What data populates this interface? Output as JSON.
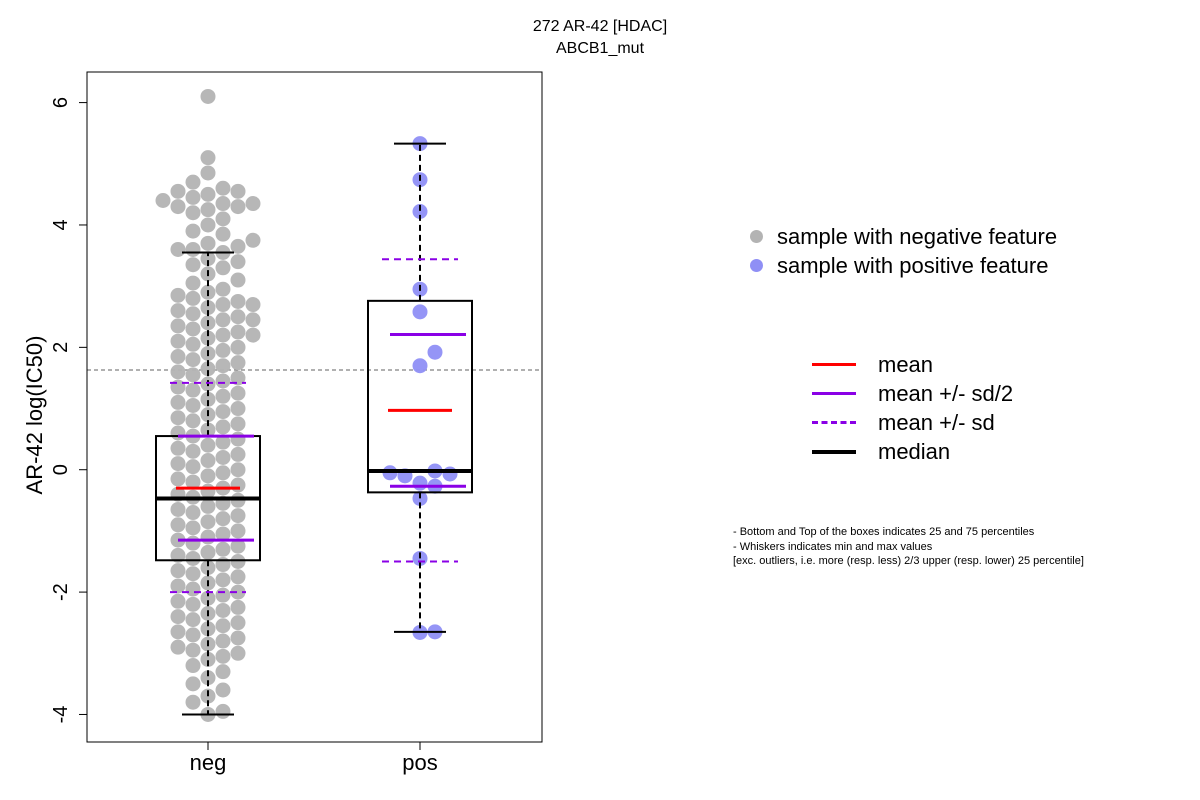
{
  "title": {
    "line1": "272 AR-42 [HDAC]",
    "line2": "ABCB1_mut"
  },
  "colors": {
    "neg_points": "#b3b3b3",
    "pos_points": "#8f8ff5",
    "mean": "#ff0000",
    "sd": "#8a00e6",
    "median": "#000000",
    "threshold_line": "#808080"
  },
  "legend_points": [
    {
      "label": "sample with negative feature",
      "color": "#b3b3b3"
    },
    {
      "label": "sample with positive feature",
      "color": "#8f8ff5"
    }
  ],
  "legend_lines": [
    {
      "label": "mean",
      "style": "solid",
      "color": "#ff0000"
    },
    {
      "label": "mean +/- sd/2",
      "style": "solid",
      "color": "#8a00e6"
    },
    {
      "label": "mean +/- sd",
      "style": "dashed",
      "color": "#8a00e6"
    },
    {
      "label": "median",
      "style": "thick",
      "color": "#000000"
    }
  ],
  "notes": [
    "- Bottom and Top of the boxes indicates 25 and 75 percentiles",
    "- Whiskers indicates min and max values",
    "[exc. outliers, i.e. more (resp. less) 2/3 upper (resp. lower) 25 percentile]"
  ],
  "chart_data": {
    "type": "box",
    "ylabel": "AR-42 log(IC50)",
    "xlabel": "",
    "ylim": [
      -4.45,
      6.5
    ],
    "yticks": [
      -4,
      -2,
      0,
      2,
      4,
      6
    ],
    "threshold": 1.63,
    "categories": [
      "neg",
      "pos"
    ],
    "groups": [
      {
        "name": "neg",
        "q1": -1.48,
        "median": -0.47,
        "q3": 0.55,
        "whisker_low": -4.0,
        "whisker_high": 3.55,
        "mean": -0.3,
        "sd_half_low": -1.15,
        "sd_half_high": 0.55,
        "sd_low": -2.0,
        "sd_high": 1.42,
        "points": [
          6.1,
          5.1,
          4.85,
          4.7,
          4.6,
          4.55,
          4.55,
          4.5,
          4.45,
          4.4,
          4.35,
          4.35,
          4.3,
          4.3,
          4.25,
          4.2,
          4.1,
          4.0,
          3.9,
          3.85,
          3.75,
          3.7,
          3.65,
          3.6,
          3.6,
          3.55,
          3.45,
          3.4,
          3.35,
          3.3,
          3.2,
          3.1,
          3.05,
          2.95,
          2.9,
          2.85,
          2.8,
          2.75,
          2.7,
          2.7,
          2.65,
          2.6,
          2.55,
          2.5,
          2.45,
          2.45,
          2.4,
          2.35,
          2.3,
          2.25,
          2.2,
          2.2,
          2.15,
          2.1,
          2.05,
          2.0,
          1.95,
          1.9,
          1.85,
          1.8,
          1.75,
          1.7,
          1.65,
          1.6,
          1.55,
          1.5,
          1.45,
          1.4,
          1.35,
          1.3,
          1.25,
          1.2,
          1.15,
          1.1,
          1.05,
          1.0,
          0.95,
          0.9,
          0.85,
          0.8,
          0.75,
          0.7,
          0.65,
          0.6,
          0.55,
          0.5,
          0.45,
          0.4,
          0.35,
          0.3,
          0.25,
          0.2,
          0.15,
          0.1,
          0.05,
          0.0,
          -0.05,
          -0.1,
          -0.15,
          -0.2,
          -0.25,
          -0.3,
          -0.35,
          -0.4,
          -0.45,
          -0.5,
          -0.55,
          -0.6,
          -0.65,
          -0.7,
          -0.75,
          -0.8,
          -0.85,
          -0.9,
          -0.95,
          -1.0,
          -1.05,
          -1.1,
          -1.15,
          -1.2,
          -1.25,
          -1.3,
          -1.35,
          -1.4,
          -1.45,
          -1.5,
          -1.55,
          -1.6,
          -1.65,
          -1.7,
          -1.75,
          -1.8,
          -1.85,
          -1.9,
          -1.95,
          -2.0,
          -2.05,
          -2.1,
          -2.15,
          -2.2,
          -2.25,
          -2.3,
          -2.35,
          -2.4,
          -2.45,
          -2.5,
          -2.55,
          -2.6,
          -2.65,
          -2.7,
          -2.75,
          -2.8,
          -2.85,
          -2.9,
          -2.95,
          -3.0,
          -3.05,
          -3.1,
          -3.2,
          -3.3,
          -3.4,
          -3.5,
          -3.6,
          -3.7,
          -3.8,
          -3.95,
          -4.0
        ]
      },
      {
        "name": "pos",
        "q1": -0.37,
        "median": -0.02,
        "q3": 2.76,
        "whisker_low": -2.65,
        "whisker_high": 5.33,
        "mean": 0.97,
        "sd_half_low": -0.27,
        "sd_half_high": 2.21,
        "sd_low": -1.5,
        "sd_high": 3.44,
        "points": [
          5.33,
          4.74,
          4.22,
          2.95,
          2.58,
          1.92,
          1.7,
          -0.07,
          -0.02,
          -0.1,
          -0.05,
          -0.22,
          -0.27,
          -0.47,
          -1.45,
          -2.65,
          -2.66
        ]
      }
    ]
  }
}
